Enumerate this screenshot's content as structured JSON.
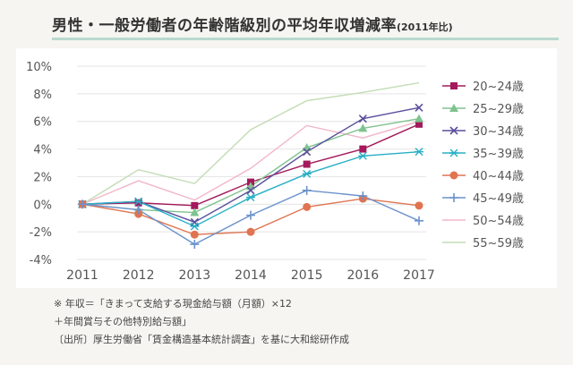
{
  "title": {
    "main": "男性・一般労働者の年齢階級別の平均年収増減率",
    "sub": "(2011年比)"
  },
  "notes": [
    "※ 年収＝「きまって支給する現金給与額（月額）×12",
    "＋年間賞与その他特別給与額」",
    "〔出所〕厚生労働省「賃金構造基本統計調査」を基に大和総研作成"
  ],
  "chart_data": {
    "type": "line",
    "x": [
      "2011",
      "2012",
      "2013",
      "2014",
      "2015",
      "2016",
      "2017"
    ],
    "yticks": [
      "10%",
      "8%",
      "6%",
      "4%",
      "2%",
      "0%",
      "-2%",
      "-4%"
    ],
    "ylim": [
      -4,
      10
    ],
    "grid": true,
    "legend": "right",
    "series": [
      {
        "name": "20~24歳",
        "color": "#a3195b",
        "marker": "square",
        "values": [
          0,
          0.1,
          -0.1,
          1.6,
          2.9,
          4.0,
          5.8
        ]
      },
      {
        "name": "25~29歳",
        "color": "#7fc38f",
        "marker": "triangle",
        "values": [
          0,
          -0.4,
          -0.6,
          1.3,
          4.1,
          5.5,
          6.2
        ]
      },
      {
        "name": "30~34歳",
        "color": "#5a4f9c",
        "marker": "x",
        "values": [
          0,
          0.2,
          -1.3,
          1.0,
          3.8,
          6.2,
          7.0
        ]
      },
      {
        "name": "35~39歳",
        "color": "#28afc6",
        "marker": "asterisk",
        "values": [
          0,
          0.2,
          -1.6,
          0.5,
          2.2,
          3.5,
          3.8
        ]
      },
      {
        "name": "40~44歳",
        "color": "#e07350",
        "marker": "circle",
        "values": [
          0,
          -0.7,
          -2.2,
          -2.0,
          -0.2,
          0.4,
          -0.1
        ]
      },
      {
        "name": "45~49歳",
        "color": "#6b92cc",
        "marker": "plus",
        "values": [
          0,
          -0.4,
          -2.9,
          -0.8,
          1.0,
          0.6,
          -1.2
        ]
      },
      {
        "name": "50~54歳",
        "color": "#f2b6c8",
        "marker": "none",
        "values": [
          0,
          1.7,
          0.3,
          2.6,
          5.7,
          4.8,
          6.0
        ]
      },
      {
        "name": "55~59歳",
        "color": "#c3dcb4",
        "marker": "none",
        "values": [
          0,
          2.5,
          1.5,
          5.4,
          7.5,
          8.1,
          8.8
        ]
      }
    ]
  }
}
